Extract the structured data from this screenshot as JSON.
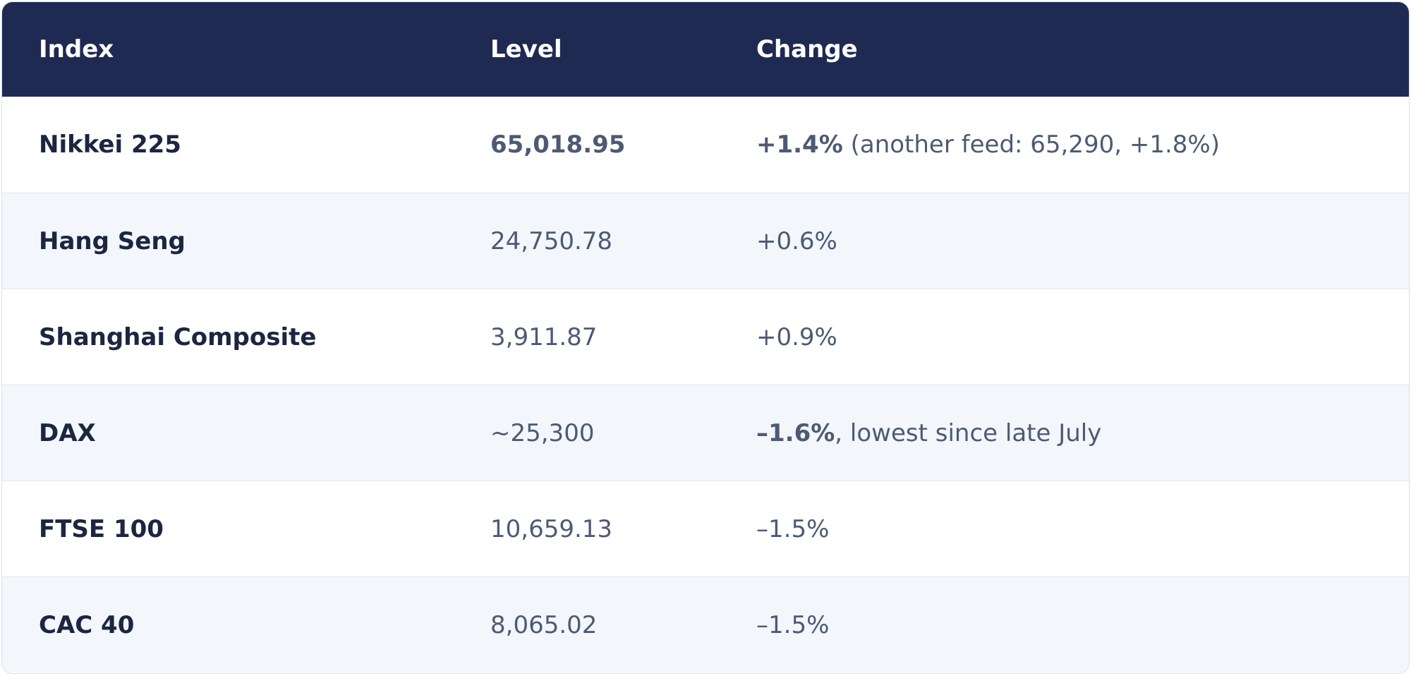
{
  "table": {
    "headers": {
      "index": "Index",
      "level": "Level",
      "change": "Change"
    },
    "rows": [
      {
        "index": "Nikkei 225",
        "level": "65,018.95",
        "change_strong": "+1.4%",
        "change_rest": " (another feed: 65,290, +1.8%)"
      },
      {
        "index": "Hang Seng",
        "level": "24,750.78",
        "change_strong": "",
        "change_rest": "+0.6%"
      },
      {
        "index": "Shanghai Composite",
        "level": "3,911.87",
        "change_strong": "",
        "change_rest": "+0.9%"
      },
      {
        "index": "DAX",
        "level": "~25,300",
        "change_strong": "–1.6%",
        "change_rest": ", lowest since late July"
      },
      {
        "index": "FTSE 100",
        "level": "10,659.13",
        "change_strong": "",
        "change_rest": "–1.5%"
      },
      {
        "index": "CAC 40",
        "level": "8,065.02",
        "change_strong": "",
        "change_rest": "–1.5%"
      }
    ]
  },
  "colors": {
    "header_bg": "#1e2a52",
    "row_alt_bg": "#f3f6fb",
    "index_text": "#1c2640",
    "value_text": "#4e5a74"
  }
}
